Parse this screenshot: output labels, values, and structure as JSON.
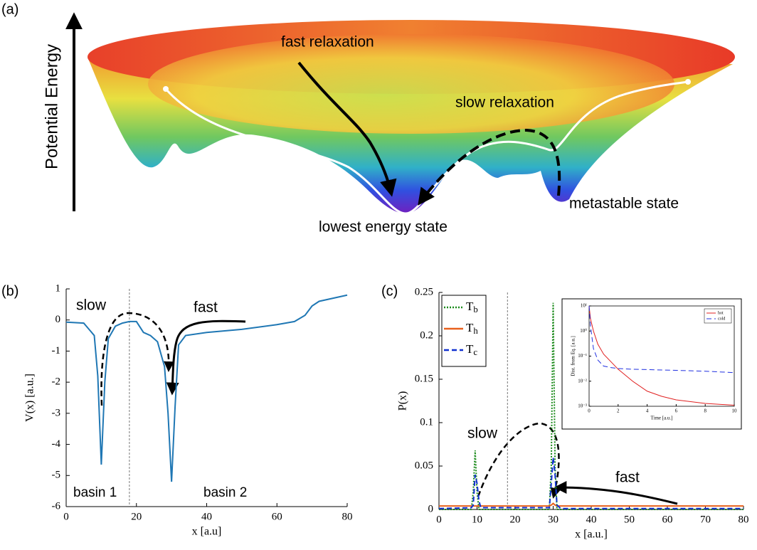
{
  "panel_a": {
    "panel_label": "(a)",
    "ylabel": "Potential Energy",
    "annotations": [
      "fast relaxation",
      "slow relaxation",
      "metastable state",
      "lowest energy state"
    ]
  },
  "chart_data": [
    {
      "type": "line",
      "panel_label": "(b)",
      "xlabel": "x [a.u]",
      "ylabel": "V(x) [a.u.]",
      "x": [
        0,
        5,
        8,
        9,
        10,
        11,
        12,
        14,
        16,
        18,
        20,
        22,
        24,
        26,
        28,
        29,
        30,
        31,
        32,
        34,
        40,
        50,
        60,
        65,
        68,
        70,
        72,
        80
      ],
      "series": [
        {
          "name": "V(x)",
          "color": "#1f77b4",
          "values": [
            -0.07,
            -0.1,
            -0.5,
            -1.8,
            -4.65,
            -2,
            -0.6,
            -0.2,
            -0.1,
            -0.05,
            -0.05,
            -0.4,
            -0.5,
            -0.7,
            -1.5,
            -3,
            -5.2,
            -2.8,
            -0.8,
            -0.5,
            -0.4,
            -0.3,
            -0.15,
            -0.05,
            0.15,
            0.45,
            0.6,
            0.8
          ]
        }
      ],
      "xlim": [
        0,
        80
      ],
      "xticks": [
        0,
        20,
        40,
        60,
        80
      ],
      "ylim": [
        -6,
        1
      ],
      "yticks": [
        -6,
        -5,
        -4,
        -3,
        -2,
        -1,
        0,
        1
      ],
      "vline": 18,
      "annotations": [
        "slow",
        "fast",
        "basin 1",
        "basin 2"
      ],
      "legend": false
    },
    {
      "type": "line",
      "panel_label": "(c)",
      "xlabel": "x [a.u.]",
      "ylabel": "P(x)",
      "x": [
        0,
        8.5,
        9,
        9.5,
        10,
        10.5,
        11,
        29,
        29.5,
        30,
        30.5,
        31,
        32,
        80
      ],
      "series": [
        {
          "name": "Tb",
          "color": "#1a8a1a",
          "dash": "dotted",
          "values": [
            0,
            0,
            0.02,
            0.068,
            0.02,
            0,
            0,
            0,
            0.05,
            0.238,
            0.05,
            0,
            0,
            0
          ]
        },
        {
          "name": "Th",
          "color": "#e8601c",
          "dash": "solid",
          "values": [
            0.004,
            0.004,
            0.004,
            0.004,
            0.004,
            0.004,
            0.004,
            0.004,
            0.005,
            0.007,
            0.005,
            0.004,
            0.004,
            0.004
          ]
        },
        {
          "name": "Tc",
          "color": "#1030d0",
          "dash": "dashed",
          "values": [
            0.001,
            0.002,
            0.005,
            0.04,
            0.03,
            0.01,
            0.002,
            0.002,
            0.03,
            0.06,
            0.04,
            0.005,
            0.001,
            0.001
          ]
        }
      ],
      "xlim": [
        0,
        80
      ],
      "xticks": [
        0,
        10,
        20,
        30,
        40,
        50,
        60,
        70,
        80
      ],
      "ylim": [
        0,
        0.25
      ],
      "yticks": [
        0,
        0.05,
        0.1,
        0.15,
        0.2,
        0.25
      ],
      "vline": 18,
      "annotations": [
        "slow",
        "fast"
      ],
      "legend": "upper left"
    },
    {
      "type": "line",
      "xlabel": "Time [a.u.]",
      "ylabel": "Dist. from Eq. [a.u.]",
      "log_y": true,
      "x": [
        0,
        0.1,
        0.3,
        0.6,
        1,
        1.5,
        2,
        3,
        4,
        5,
        6,
        8,
        10
      ],
      "series": [
        {
          "name": "hot",
          "color": "#e02020",
          "dash": "solid",
          "values": [
            10,
            3,
            1,
            0.3,
            0.12,
            0.06,
            0.03,
            0.01,
            0.004,
            0.0025,
            0.0018,
            0.0013,
            0.0011
          ]
        },
        {
          "name": "cold",
          "color": "#2030e0",
          "dash": "dashed",
          "values": [
            10,
            1.5,
            0.2,
            0.07,
            0.04,
            0.035,
            0.032,
            0.03,
            0.029,
            0.028,
            0.027,
            0.025,
            0.022
          ]
        }
      ],
      "xlim": [
        0,
        10
      ],
      "xticks": [
        0,
        2,
        4,
        6,
        8,
        10
      ],
      "ylim": [
        0.001,
        10
      ],
      "yticks": [
        {
          "value": 0.001,
          "label": "10⁻³"
        },
        {
          "value": 0.01,
          "label": "10⁻²"
        },
        {
          "value": 0.1,
          "label": "10⁻¹"
        },
        {
          "value": 1,
          "label": "10⁰"
        },
        {
          "value": 10,
          "label": "10¹"
        }
      ],
      "legend": "upper right"
    }
  ]
}
